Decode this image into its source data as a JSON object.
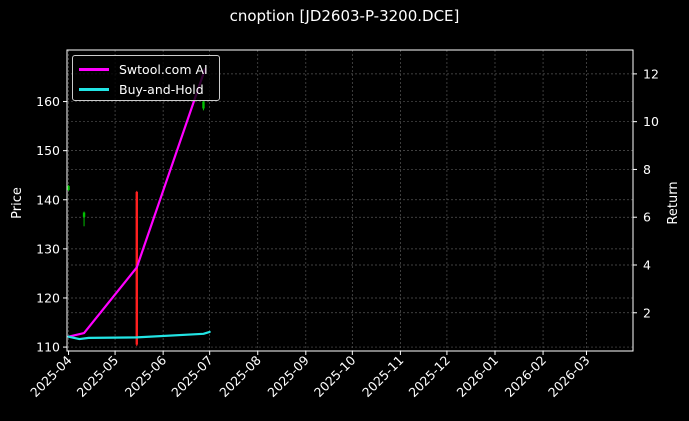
{
  "chart_data": {
    "type": "line",
    "title": "cnoption [JD2603-P-3200.DCE]",
    "xlabel": "",
    "ylabel": "Price",
    "y2label": "Return",
    "xlim": [
      "2025-03-31",
      "2026-03-31"
    ],
    "ylim": [
      109.2,
      170.5
    ],
    "y2lim": [
      0.4,
      13.0
    ],
    "x_ticks": [
      "2025-04",
      "2025-05",
      "2025-06",
      "2025-07",
      "2025-08",
      "2025-09",
      "2025-10",
      "2025-11",
      "2025-12",
      "2026-01",
      "2026-02",
      "2026-03"
    ],
    "y_ticks": [
      110,
      120,
      130,
      140,
      150,
      160
    ],
    "y2_ticks": [
      2,
      4,
      6,
      8,
      10,
      12
    ],
    "grid": true,
    "legend_position": "top-left",
    "series": [
      {
        "name": "Swtool.com AI",
        "axis": "right",
        "color": "#ff00ff",
        "points": [
          {
            "x": "2025-04-01",
            "y": 1.0
          },
          {
            "x": "2025-04-11",
            "y": 1.15
          },
          {
            "x": "2025-05-15",
            "y": 3.9
          },
          {
            "x": "2025-06-28",
            "y": 12.2
          }
        ]
      },
      {
        "name": "Buy-and-Hold",
        "axis": "right",
        "color": "#22e5e5",
        "points": [
          {
            "x": "2025-04-01",
            "y": 1.0
          },
          {
            "x": "2025-04-08",
            "y": 0.9
          },
          {
            "x": "2025-04-14",
            "y": 0.95
          },
          {
            "x": "2025-05-15",
            "y": 0.97
          },
          {
            "x": "2025-06-27",
            "y": 1.12
          },
          {
            "x": "2025-07-01",
            "y": 1.2
          }
        ]
      }
    ],
    "candles": [
      {
        "x": "2025-04-01",
        "open": 142.8,
        "close": 142.0,
        "high": 143.0,
        "low": 141.8,
        "color": "#00c000"
      },
      {
        "x": "2025-04-11",
        "open": 137.4,
        "close": 136.5,
        "high": 137.6,
        "low": 134.6,
        "color": "#00c000"
      },
      {
        "x": "2025-05-15",
        "open": 141.6,
        "close": 110.5,
        "high": 141.8,
        "low": 110.2,
        "color": "#ff2020"
      },
      {
        "x": "2025-06-27",
        "open": 160.0,
        "close": 158.6,
        "high": 160.2,
        "low": 158.2,
        "color": "#00c000"
      }
    ]
  }
}
